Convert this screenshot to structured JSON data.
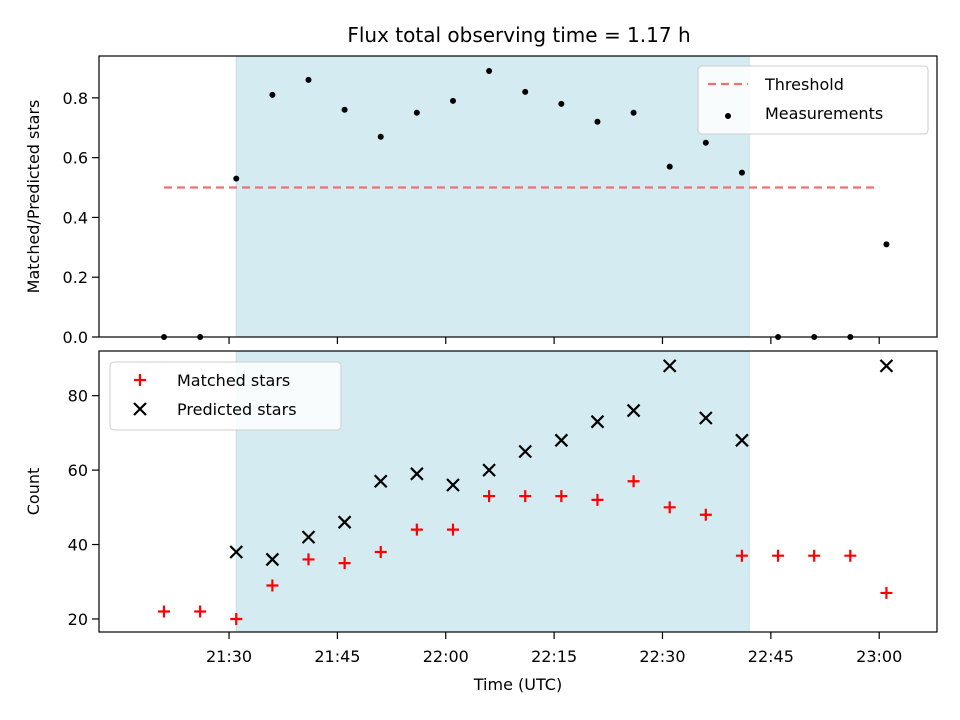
{
  "chart_data": [
    {
      "type": "scatter",
      "title": "Flux total observing time = 1.17 h",
      "xlabel": "",
      "ylabel": "Matched/Predicted stars",
      "xlim": [
        "21:12",
        "23:08"
      ],
      "ylim": [
        0.0,
        0.94
      ],
      "yticks": [
        0.0,
        0.2,
        0.4,
        0.6,
        0.8
      ],
      "shaded_region": {
        "x_start": "21:31",
        "x_end": "22:42",
        "color": "#d4ebf1"
      },
      "legend_position": "upper right",
      "series": [
        {
          "name": "Threshold",
          "kind": "dashed-line",
          "color": "#f07070",
          "x": [
            "21:21",
            "23:00"
          ],
          "y": [
            0.5,
            0.5
          ]
        },
        {
          "name": "Measurements",
          "kind": "dot",
          "color": "#000000",
          "x": [
            "21:21",
            "21:26",
            "21:31",
            "21:36",
            "21:41",
            "21:46",
            "21:51",
            "21:56",
            "22:01",
            "22:06",
            "22:11",
            "22:16",
            "22:21",
            "22:26",
            "22:31",
            "22:36",
            "22:41",
            "22:46",
            "22:51",
            "22:56",
            "23:01"
          ],
          "y": [
            0.0,
            0.0,
            0.53,
            0.81,
            0.86,
            0.76,
            0.67,
            0.75,
            0.79,
            0.89,
            0.82,
            0.78,
            0.72,
            0.75,
            0.57,
            0.65,
            0.55,
            0.0,
            0.0,
            0.0,
            0.31
          ]
        }
      ]
    },
    {
      "type": "scatter",
      "title": "",
      "xlabel": "Time (UTC)",
      "ylabel": "Count",
      "xlim": [
        "21:12",
        "23:08"
      ],
      "ylim": [
        16.5,
        92
      ],
      "xticks": [
        "21:30",
        "21:45",
        "22:00",
        "22:15",
        "22:30",
        "22:45",
        "23:00"
      ],
      "yticks": [
        20,
        40,
        60,
        80
      ],
      "shaded_region": {
        "x_start": "21:31",
        "x_end": "22:42",
        "color": "#d4ebf1"
      },
      "legend_position": "upper left",
      "series": [
        {
          "name": "Matched stars",
          "kind": "plus",
          "color": "#ff0000",
          "x": [
            "21:21",
            "21:26",
            "21:31",
            "21:36",
            "21:41",
            "21:46",
            "21:51",
            "21:56",
            "22:01",
            "22:06",
            "22:11",
            "22:16",
            "22:21",
            "22:26",
            "22:31",
            "22:36",
            "22:41",
            "22:46",
            "22:51",
            "22:56",
            "23:01"
          ],
          "y": [
            22,
            22,
            20,
            29,
            36,
            35,
            38,
            44,
            44,
            53,
            53,
            53,
            52,
            57,
            50,
            48,
            37,
            37,
            37,
            37,
            27
          ]
        },
        {
          "name": "Predicted stars",
          "kind": "cross",
          "color": "#000000",
          "x": [
            "21:31",
            "21:36",
            "21:41",
            "21:46",
            "21:51",
            "21:56",
            "22:01",
            "22:06",
            "22:11",
            "22:16",
            "22:21",
            "22:26",
            "22:31",
            "22:36",
            "22:41",
            "23:01"
          ],
          "y": [
            38,
            36,
            42,
            46,
            57,
            59,
            56,
            60,
            65,
            68,
            73,
            76,
            88,
            74,
            68,
            88
          ]
        }
      ]
    }
  ]
}
